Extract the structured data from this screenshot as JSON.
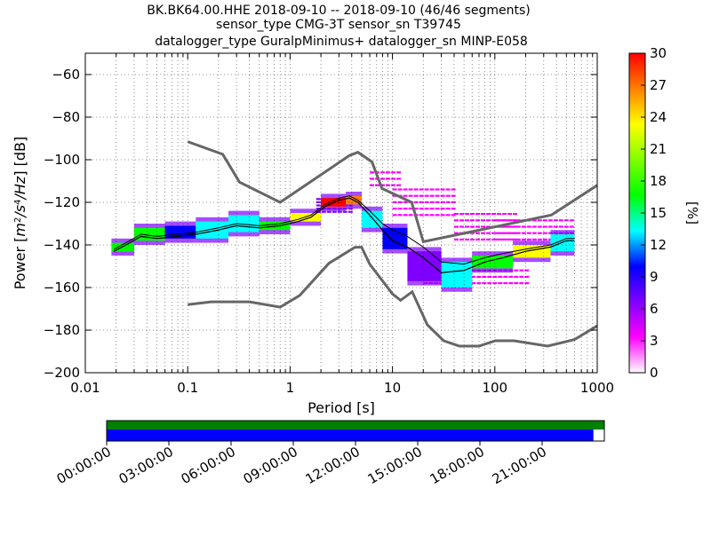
{
  "title_lines": [
    "BK.BK64.00.HHE   2018-09-10 -- 2018-09-10  (46/46 segments)",
    "sensor_type CMG-3T sensor_sn T39745",
    "datalogger_type GuralpMinimus+ datalogger_sn MINP-E058"
  ],
  "chart_data": {
    "type": "heatmap",
    "x_scale": "log",
    "xlim": [
      0.01,
      1000
    ],
    "ylim": [
      -200,
      -50
    ],
    "xlabel": "Period [s]",
    "ylabel_parts": [
      "Power [",
      "m",
      "2",
      "/",
      "s",
      "4",
      "/",
      "Hz",
      "] [dB]"
    ],
    "x_ticks": [
      {
        "value": 0.01,
        "label": "0.01"
      },
      {
        "value": 0.1,
        "label": "0.1"
      },
      {
        "value": 1,
        "label": "1"
      },
      {
        "value": 10,
        "label": "10"
      },
      {
        "value": 100,
        "label": "100"
      },
      {
        "value": 1000,
        "label": "1000"
      }
    ],
    "y_ticks": [
      {
        "value": -60,
        "label": "−60"
      },
      {
        "value": -80,
        "label": "−80"
      },
      {
        "value": -100,
        "label": "−100"
      },
      {
        "value": -120,
        "label": "−120"
      },
      {
        "value": -140,
        "label": "−140"
      },
      {
        "value": -160,
        "label": "−160"
      },
      {
        "value": -180,
        "label": "−180"
      },
      {
        "value": -200,
        "label": "−200"
      }
    ],
    "grid": true,
    "colorbar": {
      "label": "[%]",
      "range": [
        0,
        30
      ],
      "ticks": [
        {
          "value": 0,
          "label": "0"
        },
        {
          "value": 3,
          "label": "3"
        },
        {
          "value": 6,
          "label": "6"
        },
        {
          "value": 9,
          "label": "9"
        },
        {
          "value": 12,
          "label": "12"
        },
        {
          "value": 15,
          "label": "15"
        },
        {
          "value": 18,
          "label": "18"
        },
        {
          "value": 21,
          "label": "21"
        },
        {
          "value": 24,
          "label": "24"
        },
        {
          "value": 27,
          "label": "27"
        },
        {
          "value": 30,
          "label": "30"
        }
      ],
      "colors": [
        "#ffffff",
        "#ff00ff",
        "#8000ff",
        "#0000ff",
        "#00ffff",
        "#00ff00",
        "#80ff00",
        "#ffff00",
        "#ff8000",
        "#ff0000"
      ]
    },
    "noise_models": {
      "color": "#666666",
      "high": [
        [
          0.1,
          -91.5
        ],
        [
          0.22,
          -97.4
        ],
        [
          0.32,
          -110.5
        ],
        [
          0.8,
          -120
        ],
        [
          3.8,
          -98
        ],
        [
          4.6,
          -96.5
        ],
        [
          6.3,
          -101
        ],
        [
          7.9,
          -113.5
        ],
        [
          15.4,
          -120
        ],
        [
          20,
          -138.5
        ],
        [
          354.8,
          -126
        ],
        [
          1000,
          -112
        ]
      ],
      "low": [
        [
          0.1,
          -168
        ],
        [
          0.17,
          -166.7
        ],
        [
          0.4,
          -166.7
        ],
        [
          0.8,
          -169.2
        ],
        [
          1.24,
          -163.7
        ],
        [
          2.4,
          -148.6
        ],
        [
          4.3,
          -141.1
        ],
        [
          5,
          -141.1
        ],
        [
          6,
          -149
        ],
        [
          10,
          -163
        ],
        [
          12,
          -166
        ],
        [
          15.6,
          -162
        ],
        [
          21.9,
          -177.5
        ],
        [
          31.6,
          -185
        ],
        [
          45,
          -187.5
        ],
        [
          70,
          -187.5
        ],
        [
          101,
          -185
        ],
        [
          154,
          -185
        ],
        [
          328,
          -187.5
        ],
        [
          600,
          -184.4
        ],
        [
          1000,
          -178
        ]
      ]
    },
    "mode_curve": {
      "color": "#000000",
      "points": [
        [
          0.019,
          -143
        ],
        [
          0.025,
          -140
        ],
        [
          0.035,
          -136
        ],
        [
          0.05,
          -137
        ],
        [
          0.08,
          -136
        ],
        [
          0.12,
          -135
        ],
        [
          0.2,
          -133
        ],
        [
          0.3,
          -131
        ],
        [
          0.5,
          -132
        ],
        [
          0.8,
          -131
        ],
        [
          1.2,
          -129
        ],
        [
          1.6,
          -127
        ],
        [
          2.2,
          -122
        ],
        [
          3,
          -119
        ],
        [
          3.8,
          -118
        ],
        [
          4.6,
          -120
        ],
        [
          6,
          -126
        ],
        [
          8,
          -133
        ],
        [
          10,
          -138
        ],
        [
          14,
          -141
        ],
        [
          20,
          -146
        ],
        [
          30,
          -153
        ],
        [
          50,
          -152
        ],
        [
          80,
          -148
        ],
        [
          120,
          -146
        ],
        [
          200,
          -143
        ],
        [
          350,
          -141
        ],
        [
          500,
          -138
        ],
        [
          600,
          -138
        ]
      ]
    },
    "mean_curve": {
      "color": "#000000",
      "points": [
        [
          0.019,
          -142
        ],
        [
          0.025,
          -139
        ],
        [
          0.035,
          -135
        ],
        [
          0.05,
          -136
        ],
        [
          0.08,
          -135
        ],
        [
          0.12,
          -134
        ],
        [
          0.2,
          -132
        ],
        [
          0.3,
          -130
        ],
        [
          0.5,
          -131
        ],
        [
          0.8,
          -130
        ],
        [
          1.2,
          -128
        ],
        [
          1.6,
          -126
        ],
        [
          2.2,
          -121
        ],
        [
          3,
          -118
        ],
        [
          3.8,
          -117
        ],
        [
          4.6,
          -119
        ],
        [
          6,
          -124
        ],
        [
          8,
          -130
        ],
        [
          10,
          -133
        ],
        [
          14,
          -136
        ],
        [
          20,
          -141
        ],
        [
          30,
          -148
        ],
        [
          50,
          -149
        ],
        [
          80,
          -146
        ],
        [
          120,
          -144
        ],
        [
          200,
          -142
        ],
        [
          350,
          -140
        ],
        [
          500,
          -137
        ],
        [
          600,
          -137
        ]
      ]
    },
    "density_bands": [
      {
        "x": [
          0.018,
          0.03
        ],
        "center": -141,
        "half_width": 2,
        "pct": 22,
        "color": "#00ff00"
      },
      {
        "x": [
          0.03,
          0.06
        ],
        "center": -135,
        "half_width": 3,
        "pct": 18,
        "color": "#00ff00"
      },
      {
        "x": [
          0.06,
          0.12
        ],
        "center": -134,
        "half_width": 3,
        "pct": 9,
        "color": "#0000ff"
      },
      {
        "x": [
          0.12,
          0.25
        ],
        "center": -133,
        "half_width": 4,
        "pct": 12,
        "color": "#00ffff"
      },
      {
        "x": [
          0.25,
          0.5
        ],
        "center": -130,
        "half_width": 4,
        "pct": 10,
        "color": "#00ffff"
      },
      {
        "x": [
          0.5,
          1.0
        ],
        "center": -131,
        "half_width": 2,
        "pct": 15,
        "color": "#00ff00"
      },
      {
        "x": [
          1.0,
          2.0
        ],
        "center": -127,
        "half_width": 2,
        "pct": 20,
        "color": "#ffff00"
      },
      {
        "x": [
          2.0,
          3.5
        ],
        "center": -120,
        "half_width": 2,
        "pct": 28,
        "color": "#ff0000"
      },
      {
        "x": [
          3.5,
          5.0
        ],
        "center": -119,
        "half_width": 2,
        "pct": 25,
        "color": "#ff8000"
      },
      {
        "x": [
          5.0,
          8.0
        ],
        "center": -128,
        "half_width": 4,
        "pct": 14,
        "color": "#00ffff"
      },
      {
        "x": [
          8.0,
          14.0
        ],
        "center": -137,
        "half_width": 5,
        "pct": 8,
        "color": "#0000ff"
      },
      {
        "x": [
          14.0,
          30.0
        ],
        "center": -150,
        "half_width": 7,
        "pct": 4,
        "color": "#8000ff"
      },
      {
        "x": [
          30.0,
          60.0
        ],
        "center": -154,
        "half_width": 6,
        "pct": 10,
        "color": "#00ffff"
      },
      {
        "x": [
          60.0,
          150.0
        ],
        "center": -148,
        "half_width": 3,
        "pct": 12,
        "color": "#00ff00"
      },
      {
        "x": [
          150.0,
          350.0
        ],
        "center": -143,
        "half_width": 3,
        "pct": 20,
        "color": "#ffff00"
      },
      {
        "x": [
          350.0,
          600.0
        ],
        "center": -139,
        "half_width": 4,
        "pct": 14,
        "color": "#00ffff"
      }
    ],
    "sparse_cells": [
      {
        "x": [
          6,
          12
        ],
        "y": [
          -112,
          -104
        ],
        "pct": 3,
        "color": "#ff00ff"
      },
      {
        "x": [
          10,
          40
        ],
        "y": [
          -128,
          -112
        ],
        "pct": 3,
        "color": "#ff00ff"
      },
      {
        "x": [
          40,
          150
        ],
        "y": [
          -140,
          -125
        ],
        "pct": 2,
        "color": "#ff00ff"
      },
      {
        "x": [
          100,
          600
        ],
        "y": [
          -140,
          -128
        ],
        "pct": 3,
        "color": "#ff00ff"
      },
      {
        "x": [
          20,
          200
        ],
        "y": [
          -160,
          -150
        ],
        "pct": 3,
        "color": "#ff00ff"
      },
      {
        "x": [
          1.8,
          4
        ],
        "y": [
          -125,
          -118
        ],
        "pct": 5,
        "color": "#8000ff"
      }
    ],
    "coverage": {
      "labels": [
        "00:00:00",
        "03:00:00",
        "06:00:00",
        "09:00:00",
        "12:00:00",
        "15:00:00",
        "18:00:00",
        "21:00:00"
      ],
      "data_fraction": 0.978,
      "data_color": "#0000ff",
      "full_color": "#008000"
    }
  }
}
